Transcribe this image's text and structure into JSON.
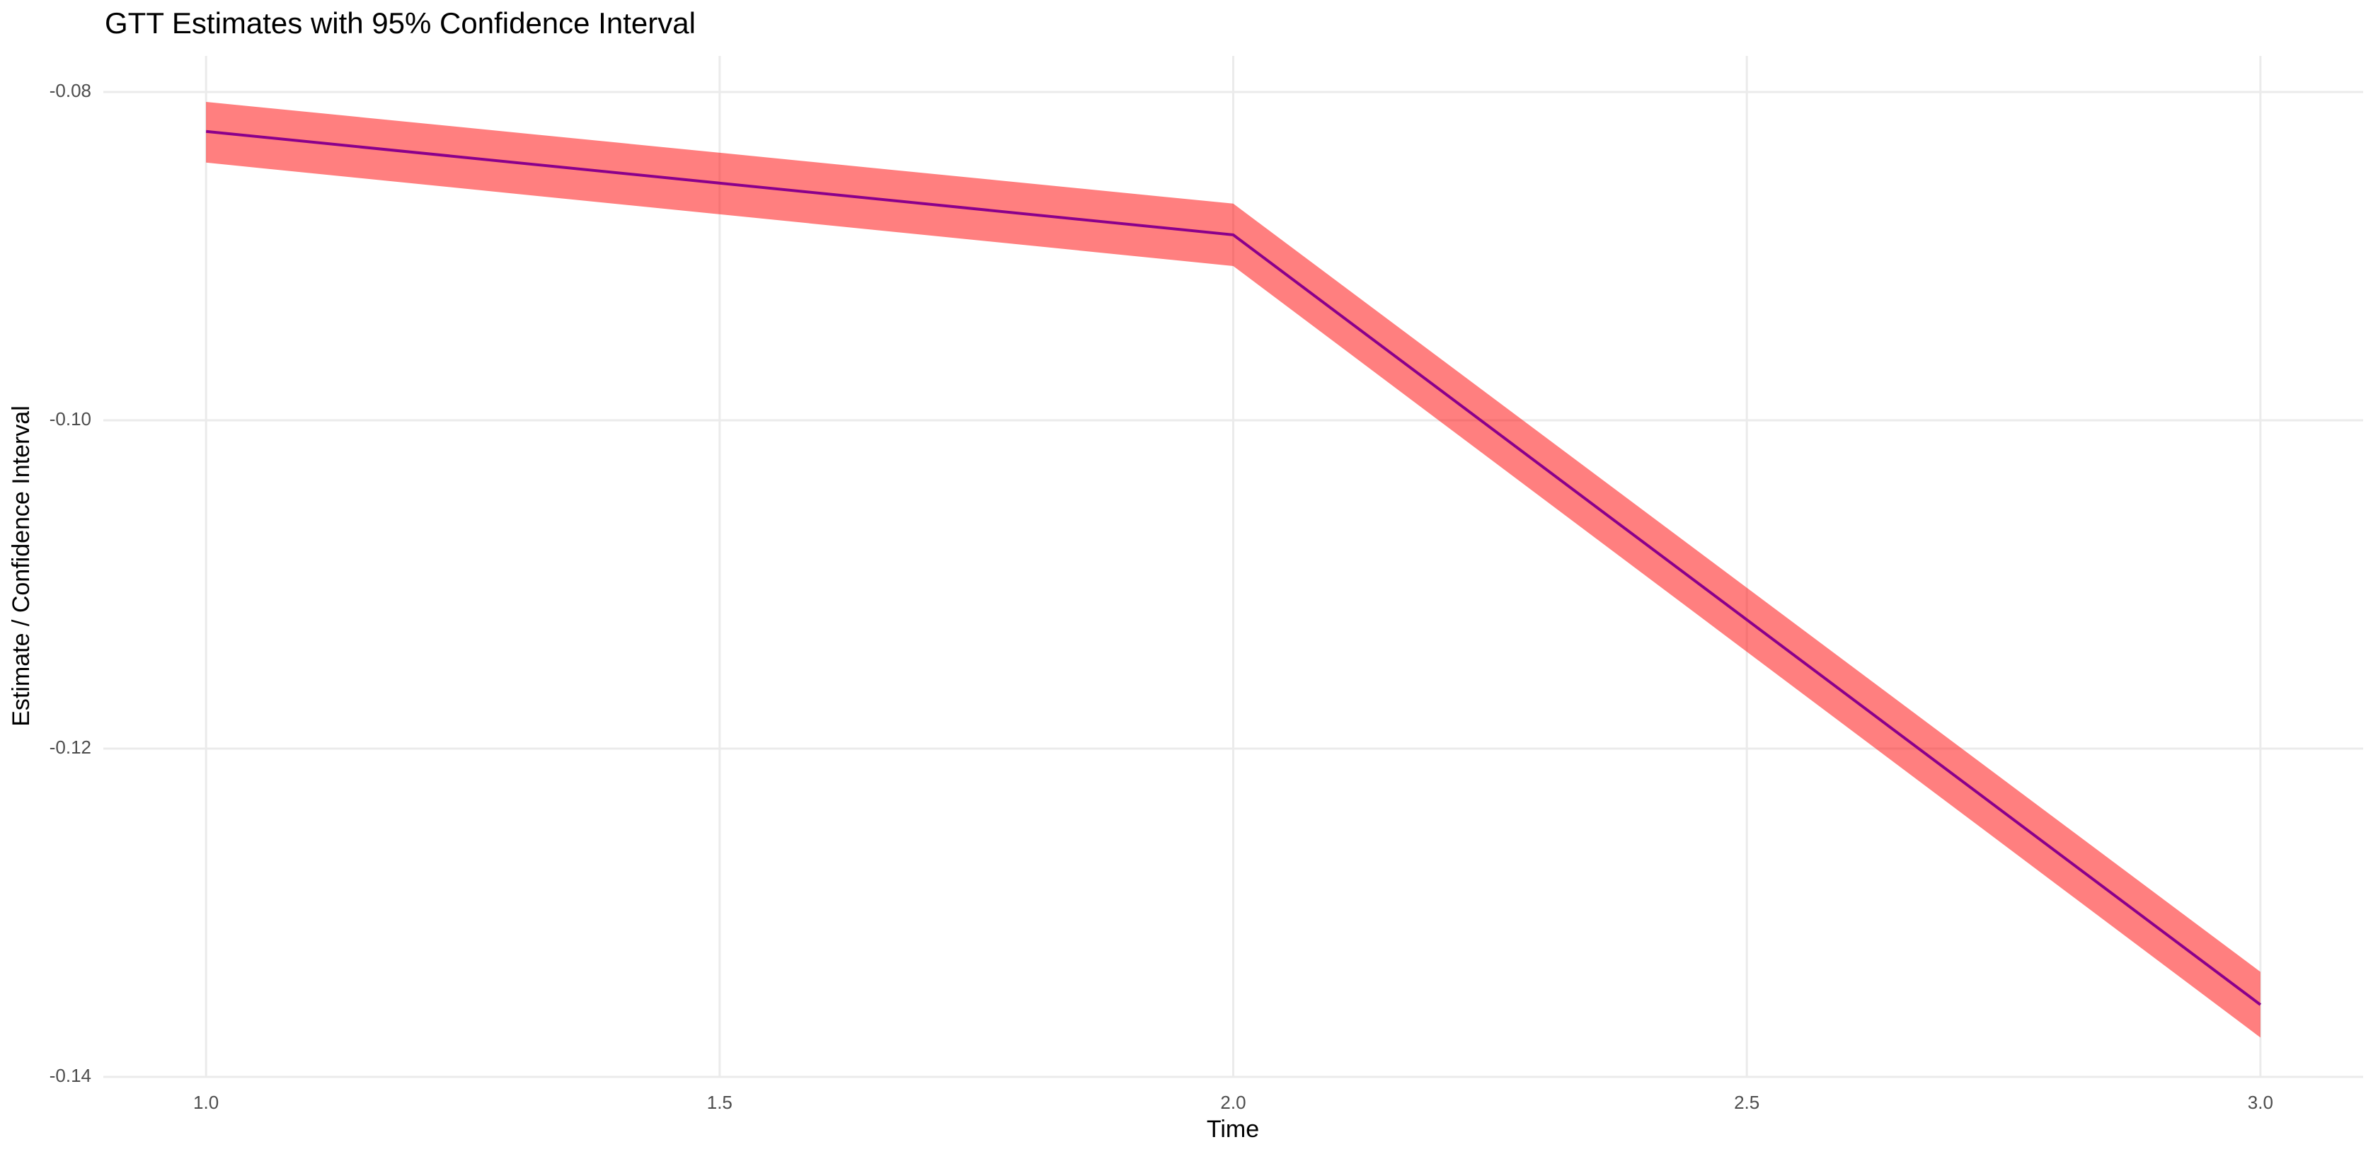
{
  "chart_data": {
    "type": "line",
    "title": "GTT Estimates with 95% Confidence Interval",
    "x_label": "Time",
    "y_label": "Estimate / Confidence Interval",
    "x": [
      1,
      2,
      3
    ],
    "values": [
      -0.0824,
      -0.0887,
      -0.1356
    ],
    "color": "#8b008b",
    "ci_lower": [
      -0.0843,
      -0.0906,
      -0.1376
    ],
    "ci_upper": [
      -0.0806,
      -0.0868,
      -0.1336
    ],
    "ci_color": "#ff0000",
    "ci_opacity": 0.5,
    "xlim": [
      0.9,
      3.1
    ],
    "ylim": [
      -0.14,
      -0.0778
    ],
    "xticks": [
      {
        "value": 1,
        "label": "1.0"
      },
      1.5,
      {
        "value": 2,
        "label": "2.0"
      },
      2.5,
      {
        "value": 3,
        "label": "3.0"
      }
    ],
    "yticks": [
      -0.14,
      -0.12,
      {
        "value": -0.1,
        "label": "-0.10"
      },
      -0.08
    ],
    "grid": true
  }
}
